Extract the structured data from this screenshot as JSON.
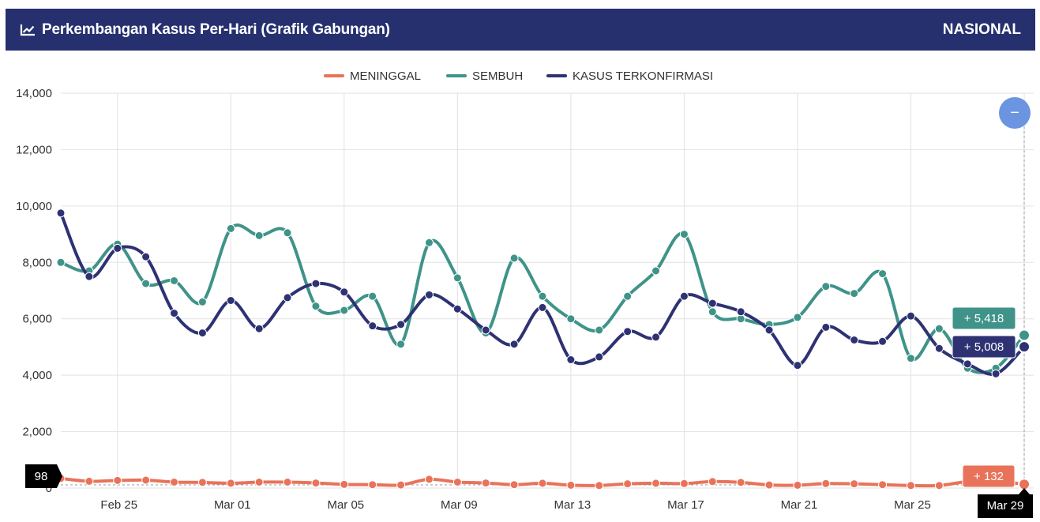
{
  "header": {
    "title": "Perkembangan Kasus Per-Hari (Grafik Gabungan)",
    "region": "NASIONAL",
    "icon": "line-chart-icon"
  },
  "colors": {
    "header_bg": "#26306f",
    "meninggal": "#e8735a",
    "sembuh": "#3f9389",
    "terkonfirmasi": "#2e3273",
    "zoom_button": "#6b95e0"
  },
  "zoom_button": {
    "label": "−",
    "icon": "minus-icon"
  },
  "chart_data": {
    "type": "line",
    "title": "",
    "xlabel": "",
    "ylabel": "",
    "ylim": [
      0,
      14000
    ],
    "y_ticks": [
      "0",
      "2,000",
      "4,000",
      "6,000",
      "8,000",
      "10,000",
      "12,000",
      "14,000"
    ],
    "x_ticks": [
      "Feb 25",
      "Mar 01",
      "Mar 05",
      "Mar 09",
      "Mar 13",
      "Mar 17",
      "Mar 21",
      "Mar 25",
      "Mar 29"
    ],
    "x": [
      "Feb 23",
      "Feb 24",
      "Feb 25",
      "Feb 26",
      "Feb 27",
      "Feb 28",
      "Mar 01",
      "Mar 02",
      "Mar 03",
      "Mar 04",
      "Mar 05",
      "Mar 06",
      "Mar 07",
      "Mar 08",
      "Mar 09",
      "Mar 10",
      "Mar 11",
      "Mar 12",
      "Mar 13",
      "Mar 14",
      "Mar 15",
      "Mar 16",
      "Mar 17",
      "Mar 18",
      "Mar 19",
      "Mar 20",
      "Mar 21",
      "Mar 22",
      "Mar 23",
      "Mar 24",
      "Mar 25",
      "Mar 26",
      "Mar 27",
      "Mar 28",
      "Mar 29"
    ],
    "grid": true,
    "legend_position": "top-center",
    "series": [
      {
        "name": "MENINGGAL",
        "values": [
          340,
          240,
          270,
          280,
          210,
          200,
          170,
          210,
          210,
          180,
          130,
          120,
          110,
          310,
          210,
          180,
          120,
          170,
          100,
          90,
          150,
          170,
          160,
          230,
          200,
          110,
          100,
          160,
          150,
          120,
          90,
          90,
          230,
          250,
          132
        ]
      },
      {
        "name": "SEMBUH",
        "values": [
          8000,
          7700,
          8650,
          7250,
          7350,
          6600,
          9200,
          8950,
          9050,
          6450,
          6300,
          6800,
          5100,
          8700,
          7450,
          5500,
          8150,
          6800,
          6000,
          5600,
          6800,
          7700,
          9000,
          6250,
          6000,
          5800,
          6050,
          7150,
          6900,
          7600,
          4600,
          5650,
          4250,
          4250,
          5418
        ]
      },
      {
        "name": "KASUS TERKONFIRMASI",
        "values": [
          9750,
          7500,
          8500,
          8200,
          6200,
          5500,
          6650,
          5650,
          6750,
          7250,
          6950,
          5750,
          5800,
          6850,
          6350,
          5600,
          5100,
          6400,
          4550,
          4650,
          5550,
          5350,
          6800,
          6550,
          6250,
          5600,
          4350,
          5700,
          5250,
          5200,
          6100,
          4950,
          4400,
          4050,
          5008
        ]
      }
    ],
    "annotations": [
      {
        "series": "SEMBUH",
        "text": "+ 5,418"
      },
      {
        "series": "KASUS TERKONFIRMASI",
        "text": "+ 5,008"
      },
      {
        "series": "MENINGGAL",
        "text": "+ 132"
      },
      {
        "axis": "y",
        "text": "98"
      },
      {
        "axis": "x",
        "text": "Mar 29"
      }
    ]
  }
}
